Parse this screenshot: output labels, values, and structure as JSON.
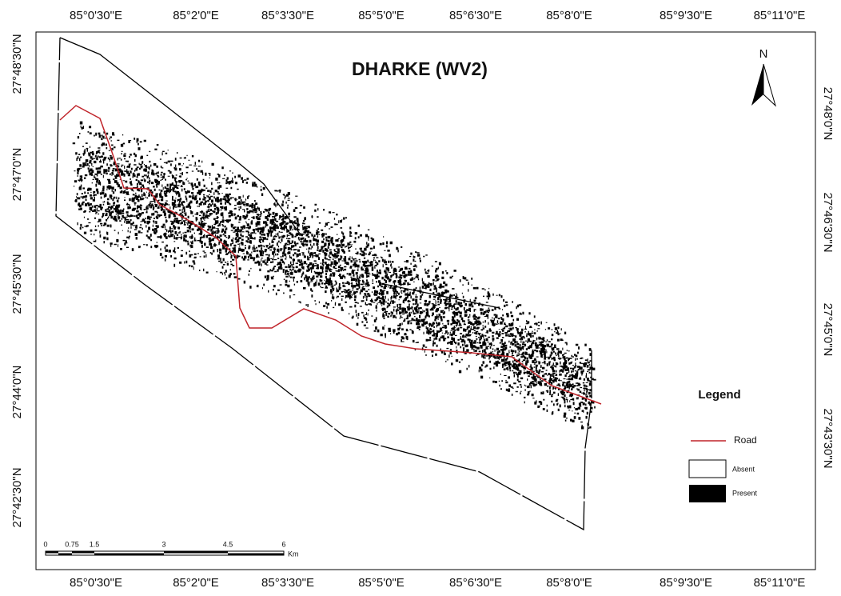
{
  "header": {
    "title": "DHARKE (WV2)"
  },
  "map": {
    "top_labels": [
      "85°0'30\"E",
      "85°2'0\"E",
      "85°3'30\"E",
      "85°5'0\"E",
      "85°6'30\"E",
      "85°8'0\"E",
      "85°9'30\"E",
      "85°11'0\"E"
    ],
    "bottom_labels": [
      "85°0'30\"E",
      "85°2'0\"E",
      "85°3'30\"E",
      "85°5'0\"E",
      "85°6'30\"E",
      "85°8'0\"E",
      "85°9'30\"E",
      "85°11'0\"E"
    ],
    "left_labels": [
      "27°48'30\"N",
      "27°47'0\"N",
      "27°45'30\"N",
      "27°44'0\"N",
      "27°42'30\"N"
    ],
    "right_labels": [
      "27°48'0\"N",
      "27°46'30\"N",
      "27°45'0\"N",
      "27°43'30\"N"
    ],
    "north": "N"
  },
  "legend": {
    "title": "Legend",
    "items": [
      "Road",
      "Absent",
      "Present"
    ]
  },
  "scale_bar": {
    "labels": [
      "0",
      "0.75",
      "1.5",
      "3",
      "4.5",
      "6"
    ],
    "unit": "Km"
  }
}
